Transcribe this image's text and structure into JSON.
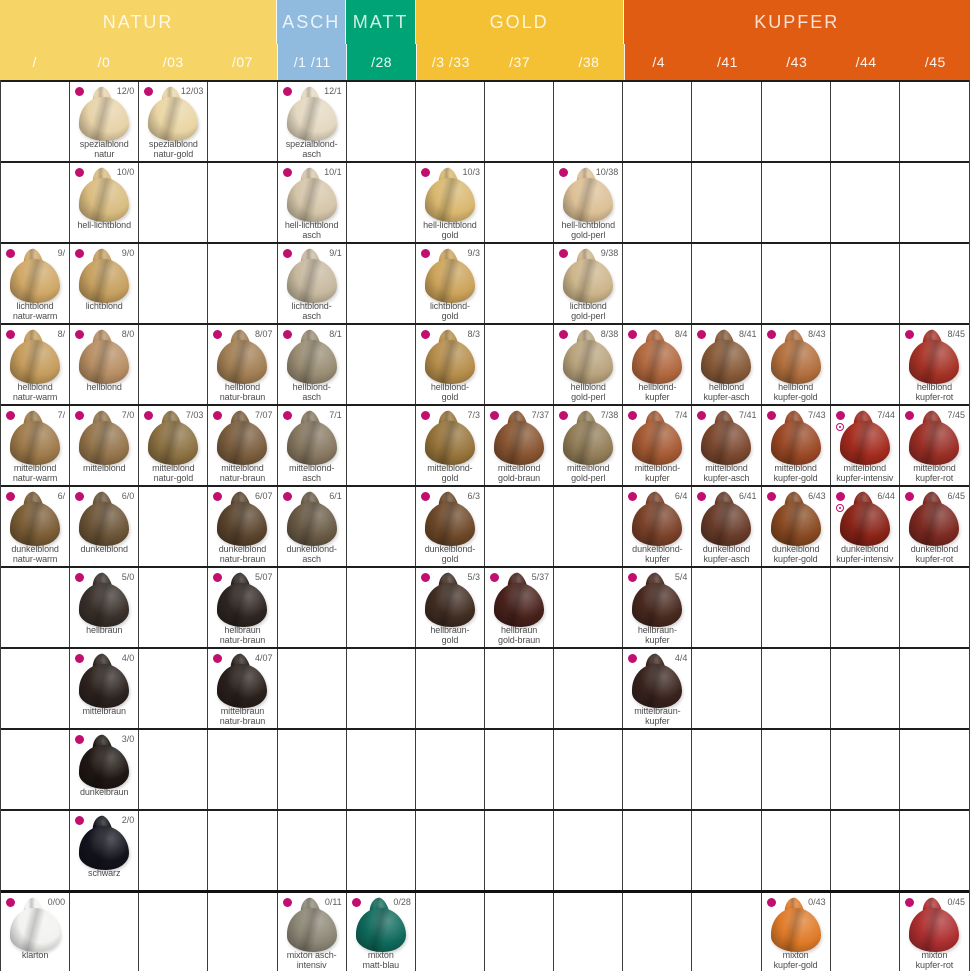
{
  "colors": {
    "natur": "#F6D466",
    "asch": "#90BADE",
    "matt": "#00A376",
    "gold": "#F3C133",
    "kupfer": "#E05C13",
    "dot": "#C00F6E",
    "grid_vertical": "#3c3c3c",
    "grid_horizontal": "#1e1e1e",
    "code_text": "#5c5c5c",
    "label_text": "#4c4c4c"
  },
  "chart_data": {
    "type": "table",
    "title": "Haarfarben-Palette (hair color shade chart)",
    "groups": [
      {
        "label": "NATUR",
        "span": 4,
        "color_key": "natur"
      },
      {
        "label": "ASCH",
        "span": 1,
        "color_key": "asch"
      },
      {
        "label": "MATT",
        "span": 1,
        "color_key": "matt"
      },
      {
        "label": "GOLD",
        "span": 3,
        "color_key": "gold"
      },
      {
        "label": "KUPFER",
        "span": 5,
        "color_key": "kupfer"
      }
    ],
    "columns": [
      "/",
      "/0",
      "/03",
      "/07",
      "/1 /11",
      "/28",
      "/3 /33",
      "/37",
      "/38",
      "/4",
      "/41",
      "/43",
      "/44",
      "/45"
    ],
    "rows": [
      {
        "level": "12",
        "cells": [
          {
            "col": 1,
            "code": "12/0",
            "label": "spezialblond\nnatur",
            "color": "#E7D3A8"
          },
          {
            "col": 2,
            "code": "12/03",
            "label": "spezialblond\nnatur-gold",
            "color": "#EAD5A4"
          },
          {
            "col": 4,
            "code": "12/1",
            "label": "spezialblond-\nasch",
            "color": "#E4D8C0"
          }
        ]
      },
      {
        "level": "10",
        "cells": [
          {
            "col": 1,
            "code": "10/0",
            "label": "hell-lichtblond",
            "color": "#D9BC80"
          },
          {
            "col": 4,
            "code": "10/1",
            "label": "hell-lichtblond\nasch",
            "color": "#D5C6A9"
          },
          {
            "col": 6,
            "code": "10/3",
            "label": "hell-lichtblond\ngold",
            "color": "#D9B76E"
          },
          {
            "col": 8,
            "code": "10/38",
            "label": "hell-lichtblond\ngold-perl",
            "color": "#DCC096"
          }
        ]
      },
      {
        "level": "9",
        "cells": [
          {
            "col": 0,
            "code": "9/",
            "label": "lichtblond\nnatur-warm",
            "color": "#D0A867"
          },
          {
            "col": 1,
            "code": "9/0",
            "label": "lichtblond",
            "color": "#C6A05F"
          },
          {
            "col": 4,
            "code": "9/1",
            "label": "lichtblond-\nasch",
            "color": "#C7B99F"
          },
          {
            "col": 6,
            "code": "9/3",
            "label": "lichtblond-\ngold",
            "color": "#CCA35A"
          },
          {
            "col": 8,
            "code": "9/38",
            "label": "lichtblond\ngold-perl",
            "color": "#CDB58B"
          }
        ]
      },
      {
        "level": "8",
        "cells": [
          {
            "col": 0,
            "code": "8/",
            "label": "hellblond\nnatur-warm",
            "color": "#C59C5C"
          },
          {
            "col": 1,
            "code": "8/0",
            "label": "hellblond",
            "color": "#B78E63"
          },
          {
            "col": 3,
            "code": "8/07",
            "label": "hellblond\nnatur-braun",
            "color": "#A27F54"
          },
          {
            "col": 4,
            "code": "8/1",
            "label": "hellblond-\nasch",
            "color": "#9A8D74"
          },
          {
            "col": 6,
            "code": "8/3",
            "label": "hellblond-\ngold",
            "color": "#B68E4B"
          },
          {
            "col": 8,
            "code": "8/38",
            "label": "hellblond\ngold-perl",
            "color": "#B9A37D"
          },
          {
            "col": 9,
            "code": "8/4",
            "label": "hellblond-\nkupfer",
            "color": "#B1683E"
          },
          {
            "col": 10,
            "code": "8/41",
            "label": "hellblond\nkupfer-asch",
            "color": "#875A38"
          },
          {
            "col": 11,
            "code": "8/43",
            "label": "hellblond\nkupfer-gold",
            "color": "#B26F3D"
          },
          {
            "col": 13,
            "code": "8/45",
            "label": "hellblond\nkupfer-rot",
            "color": "#A63226"
          }
        ]
      },
      {
        "level": "7",
        "cells": [
          {
            "col": 0,
            "code": "7/",
            "label": "mittelblond\nnatur-warm",
            "color": "#9E7A4A"
          },
          {
            "col": 1,
            "code": "7/0",
            "label": "mittelblond",
            "color": "#94744B"
          },
          {
            "col": 2,
            "code": "7/03",
            "label": "mittelblond\nnatur-gold",
            "color": "#8C7142"
          },
          {
            "col": 3,
            "code": "7/07",
            "label": "mittelblond\nnatur-braun",
            "color": "#7A5D3D"
          },
          {
            "col": 4,
            "code": "7/1",
            "label": "mittelblond-\nasch",
            "color": "#877861"
          },
          {
            "col": 6,
            "code": "7/3",
            "label": "mittelblond-\ngold",
            "color": "#97743B"
          },
          {
            "col": 7,
            "code": "7/37",
            "label": "mittelblond\ngold-braun",
            "color": "#875430"
          },
          {
            "col": 8,
            "code": "7/38",
            "label": "mittelblond\ngold-perl",
            "color": "#927D57"
          },
          {
            "col": 9,
            "code": "7/4",
            "label": "mittelblond-\nkupfer",
            "color": "#A55A33"
          },
          {
            "col": 10,
            "code": "7/41",
            "label": "mittelblond\nkupfer-asch",
            "color": "#7B482F"
          },
          {
            "col": 11,
            "code": "7/43",
            "label": "mittelblond\nkupfer-gold",
            "color": "#9A4825"
          },
          {
            "col": 12,
            "code": "7/44",
            "label": "mittelblond\nkupfer-intensiv",
            "color": "#A32B1E",
            "extra_marker": true
          },
          {
            "col": 13,
            "code": "7/45",
            "label": "mittelblond\nkupfer-rot",
            "color": "#992E25"
          }
        ]
      },
      {
        "level": "6",
        "cells": [
          {
            "col": 0,
            "code": "6/",
            "label": "dunkelblond\nnatur-warm",
            "color": "#7A5C35"
          },
          {
            "col": 1,
            "code": "6/0",
            "label": "dunkelblond",
            "color": "#6B5437"
          },
          {
            "col": 3,
            "code": "6/07",
            "label": "dunkelblond\nnatur-braun",
            "color": "#5A442D"
          },
          {
            "col": 4,
            "code": "6/1",
            "label": "dunkelblond-\nasch",
            "color": "#695A45"
          },
          {
            "col": 6,
            "code": "6/3",
            "label": "dunkelblond-\ngold",
            "color": "#6D4829"
          },
          {
            "col": 9,
            "code": "6/4",
            "label": "dunkelblond-\nkupfer",
            "color": "#7A4128"
          },
          {
            "col": 10,
            "code": "6/41",
            "label": "dunkelblond\nkupfer-asch",
            "color": "#683B29"
          },
          {
            "col": 11,
            "code": "6/43",
            "label": "dunkelblond\nkupfer-gold",
            "color": "#884921"
          },
          {
            "col": 12,
            "code": "6/44",
            "label": "dunkelblond\nkupfer-intensiv",
            "color": "#892317",
            "extra_marker": true
          },
          {
            "col": 13,
            "code": "6/45",
            "label": "dunkelblond\nkupfer-rot",
            "color": "#7C2921"
          }
        ]
      },
      {
        "level": "5",
        "cells": [
          {
            "col": 1,
            "code": "5/0",
            "label": "hellbraun",
            "color": "#39302A"
          },
          {
            "col": 3,
            "code": "5/07",
            "label": "hellbraun\nnatur-braun",
            "color": "#2D2520"
          },
          {
            "col": 6,
            "code": "5/3",
            "label": "hellbraun-\ngold",
            "color": "#402D22"
          },
          {
            "col": 7,
            "code": "5/37",
            "label": "hellbraun\ngold-braun",
            "color": "#48211B"
          },
          {
            "col": 9,
            "code": "5/4",
            "label": "hellbraun-\nkupfer",
            "color": "#48291F"
          }
        ]
      },
      {
        "level": "4",
        "cells": [
          {
            "col": 1,
            "code": "4/0",
            "label": "mittelbraun",
            "color": "#2D231F"
          },
          {
            "col": 3,
            "code": "4/07",
            "label": "mittelbraun\nnatur-braun",
            "color": "#2A201B"
          },
          {
            "col": 9,
            "code": "4/4",
            "label": "mittelbraun-\nkupfer",
            "color": "#39231D"
          }
        ]
      },
      {
        "level": "3",
        "cells": [
          {
            "col": 1,
            "code": "3/0",
            "label": "dunkelbraun",
            "color": "#1F1713"
          }
        ]
      },
      {
        "level": "2",
        "cells": [
          {
            "col": 1,
            "code": "2/0",
            "label": "schwarz",
            "color": "#13131D"
          }
        ]
      },
      {
        "level": "0",
        "mixton": true,
        "cells": [
          {
            "col": 0,
            "code": "0/00",
            "label": "klarton",
            "color": "#F2F2F0"
          },
          {
            "col": 4,
            "code": "0/11",
            "label": "mixton asch-\nintensiv",
            "color": "#8D8776"
          },
          {
            "col": 5,
            "code": "0/28",
            "label": "mixton\nmatt-blau",
            "color": "#0F6A5C"
          },
          {
            "col": 11,
            "code": "0/43",
            "label": "mixton\nkupfer-gold",
            "color": "#DF7A28"
          },
          {
            "col": 13,
            "code": "0/45",
            "label": "mixton\nkupfer-rot",
            "color": "#AE2F30"
          }
        ]
      }
    ]
  }
}
